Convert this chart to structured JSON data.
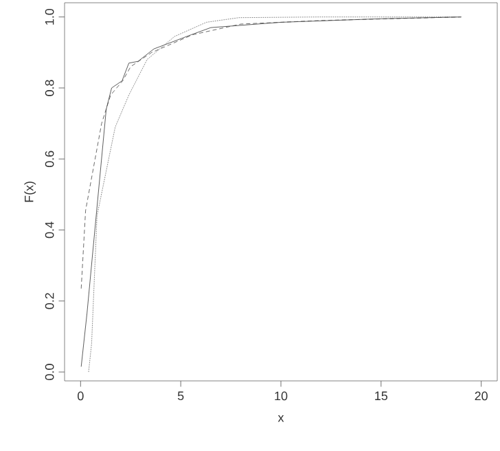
{
  "chart_data": {
    "type": "line",
    "xlabel": "x",
    "ylabel": "F(x)",
    "xlim": [
      -0.8,
      20.8
    ],
    "ylim": [
      -0.025,
      1.04
    ],
    "xticks": [
      0,
      5,
      10,
      15,
      20
    ],
    "yticks": [
      {
        "value": 0,
        "label": "0.0"
      },
      {
        "value": 0.2,
        "label": "0.2"
      },
      {
        "value": 0.4,
        "label": "0.4"
      },
      {
        "value": 0.6,
        "label": "0.6"
      },
      {
        "value": 0.8,
        "label": "0.8"
      },
      {
        "value": 1,
        "label": "1.0"
      }
    ],
    "grid": false,
    "marker": "none",
    "series": [
      {
        "color": "#333333",
        "line_style": "solid",
        "x": [
          0.03,
          0.32,
          1.28,
          1.55,
          2.07,
          2.41,
          2.87,
          3.66,
          5.53,
          6.5,
          10,
          15,
          19
        ],
        "values": [
          0.015,
          0.165,
          0.74,
          0.8,
          0.82,
          0.87,
          0.875,
          0.91,
          0.95,
          0.97,
          0.985,
          0.995,
          1.0
        ]
      },
      {
        "color": "#444444",
        "line_style": "dashed",
        "x": [
          0.03,
          0.25,
          1.05,
          1.5,
          2.1,
          2.5,
          3.55,
          5.6,
          8,
          12,
          19
        ],
        "values": [
          0.235,
          0.455,
          0.7,
          0.78,
          0.82,
          0.86,
          0.9,
          0.95,
          0.98,
          0.99,
          1.0
        ]
      },
      {
        "color": "#666666",
        "line_style": "dotted",
        "x": [
          0.4,
          0.55,
          0.82,
          1.73,
          2.41,
          3.32,
          4.69,
          6.28,
          7.9,
          12,
          19
        ],
        "values": [
          0.0,
          0.08,
          0.44,
          0.69,
          0.78,
          0.88,
          0.945,
          0.985,
          0.998,
          1.0,
          1.0
        ]
      }
    ]
  }
}
